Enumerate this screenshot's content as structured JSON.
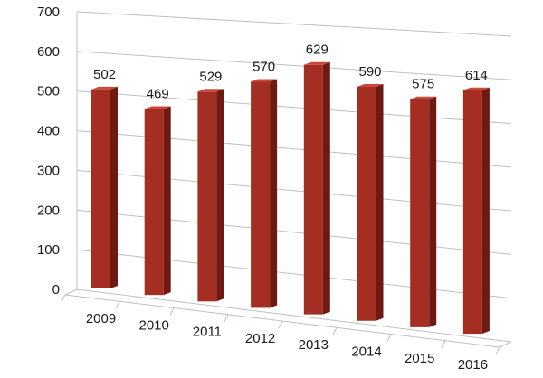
{
  "chart_data": {
    "type": "bar",
    "title": "",
    "xlabel": "",
    "ylabel": "",
    "categories": [
      "2009",
      "2010",
      "2011",
      "2012",
      "2013",
      "2014",
      "2015",
      "2016"
    ],
    "values": [
      502,
      469,
      529,
      570,
      629,
      590,
      575,
      614
    ],
    "data_labels": [
      "502",
      "469",
      "529",
      "570",
      "629",
      "590",
      "575",
      "614"
    ],
    "ylim": [
      0,
      700
    ],
    "yticks": [
      "0",
      "100",
      "200",
      "300",
      "400",
      "500",
      "600",
      "700"
    ],
    "grid": true,
    "legend": "none",
    "style": "3d-perspective-columns",
    "colors": {
      "front": "#A42E22",
      "side": "#6E1A12",
      "top": "#C8483B",
      "grid": "#bfbfbf",
      "text": "#1a1a1a"
    }
  }
}
